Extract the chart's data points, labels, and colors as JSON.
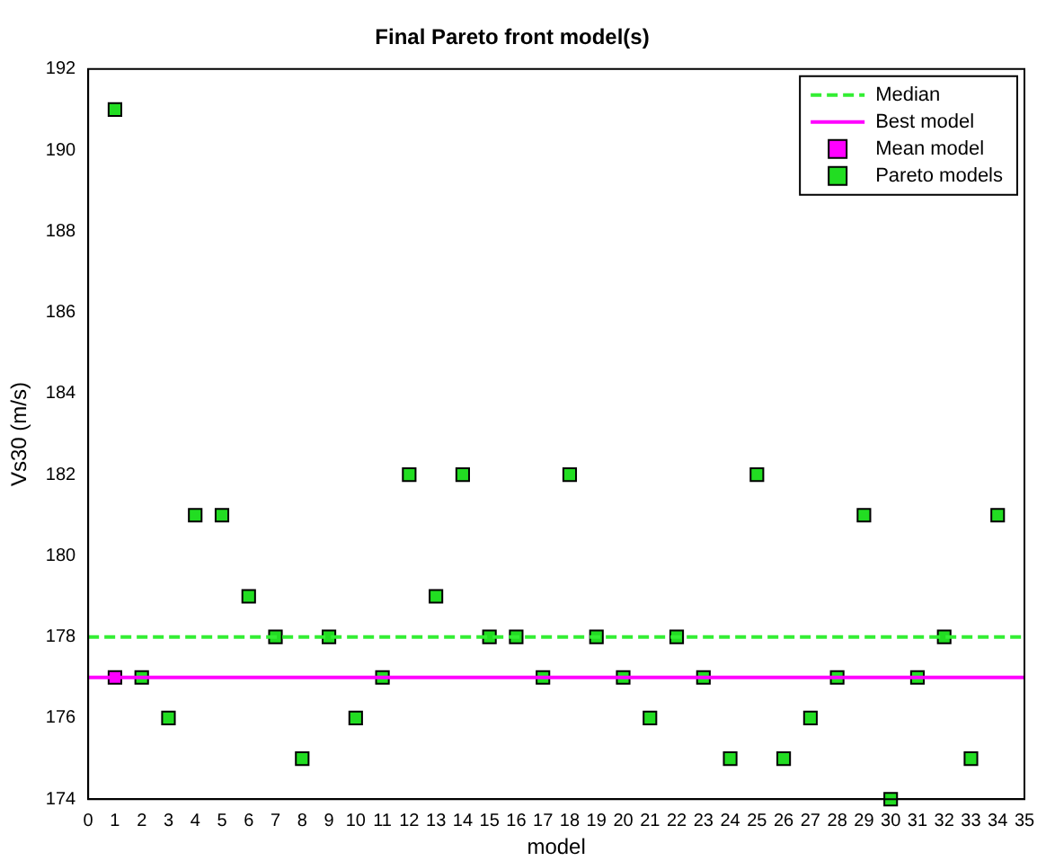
{
  "chart_data": {
    "type": "scatter",
    "title": "Final Pareto front model(s)",
    "xlabel": "model",
    "ylabel": "Vs30 (m/s)",
    "x": [
      1,
      2,
      3,
      4,
      5,
      6,
      7,
      8,
      9,
      10,
      11,
      12,
      13,
      14,
      15,
      16,
      17,
      18,
      19,
      20,
      21,
      22,
      23,
      24,
      25,
      26,
      27,
      28,
      29,
      30,
      31,
      32,
      33,
      34
    ],
    "series": [
      {
        "name": "Mean model",
        "color": "#ff00ff",
        "x": [
          1
        ],
        "values": [
          177
        ]
      },
      {
        "name": "Pareto models",
        "color": "#22dd22",
        "values": [
          191,
          177,
          176,
          181,
          181,
          179,
          178,
          175,
          178,
          176,
          177,
          182,
          179,
          182,
          178,
          178,
          177,
          182,
          178,
          177,
          176,
          178,
          177,
          175,
          182,
          175,
          176,
          177,
          181,
          174,
          177,
          178,
          175,
          181
        ]
      }
    ],
    "ref_lines": [
      {
        "axis": "y",
        "value": 178,
        "label": "Median",
        "color": "#33ee33",
        "line_style": "dashed"
      },
      {
        "axis": "y",
        "value": 177,
        "label": "Best model",
        "color": "#ff00ff",
        "line_style": "solid"
      }
    ],
    "marker": "square",
    "legend": "top right",
    "grid": false,
    "xlim": [
      0,
      35
    ],
    "xticks": [
      0,
      1,
      2,
      3,
      4,
      5,
      6,
      7,
      8,
      9,
      10,
      11,
      12,
      13,
      14,
      15,
      16,
      17,
      18,
      19,
      20,
      21,
      22,
      23,
      24,
      25,
      26,
      27,
      28,
      29,
      30,
      31,
      32,
      33,
      34,
      35
    ],
    "ylim": [
      174,
      192
    ],
    "yticks": [
      174,
      176,
      178,
      180,
      182,
      184,
      186,
      188,
      190,
      192
    ]
  }
}
